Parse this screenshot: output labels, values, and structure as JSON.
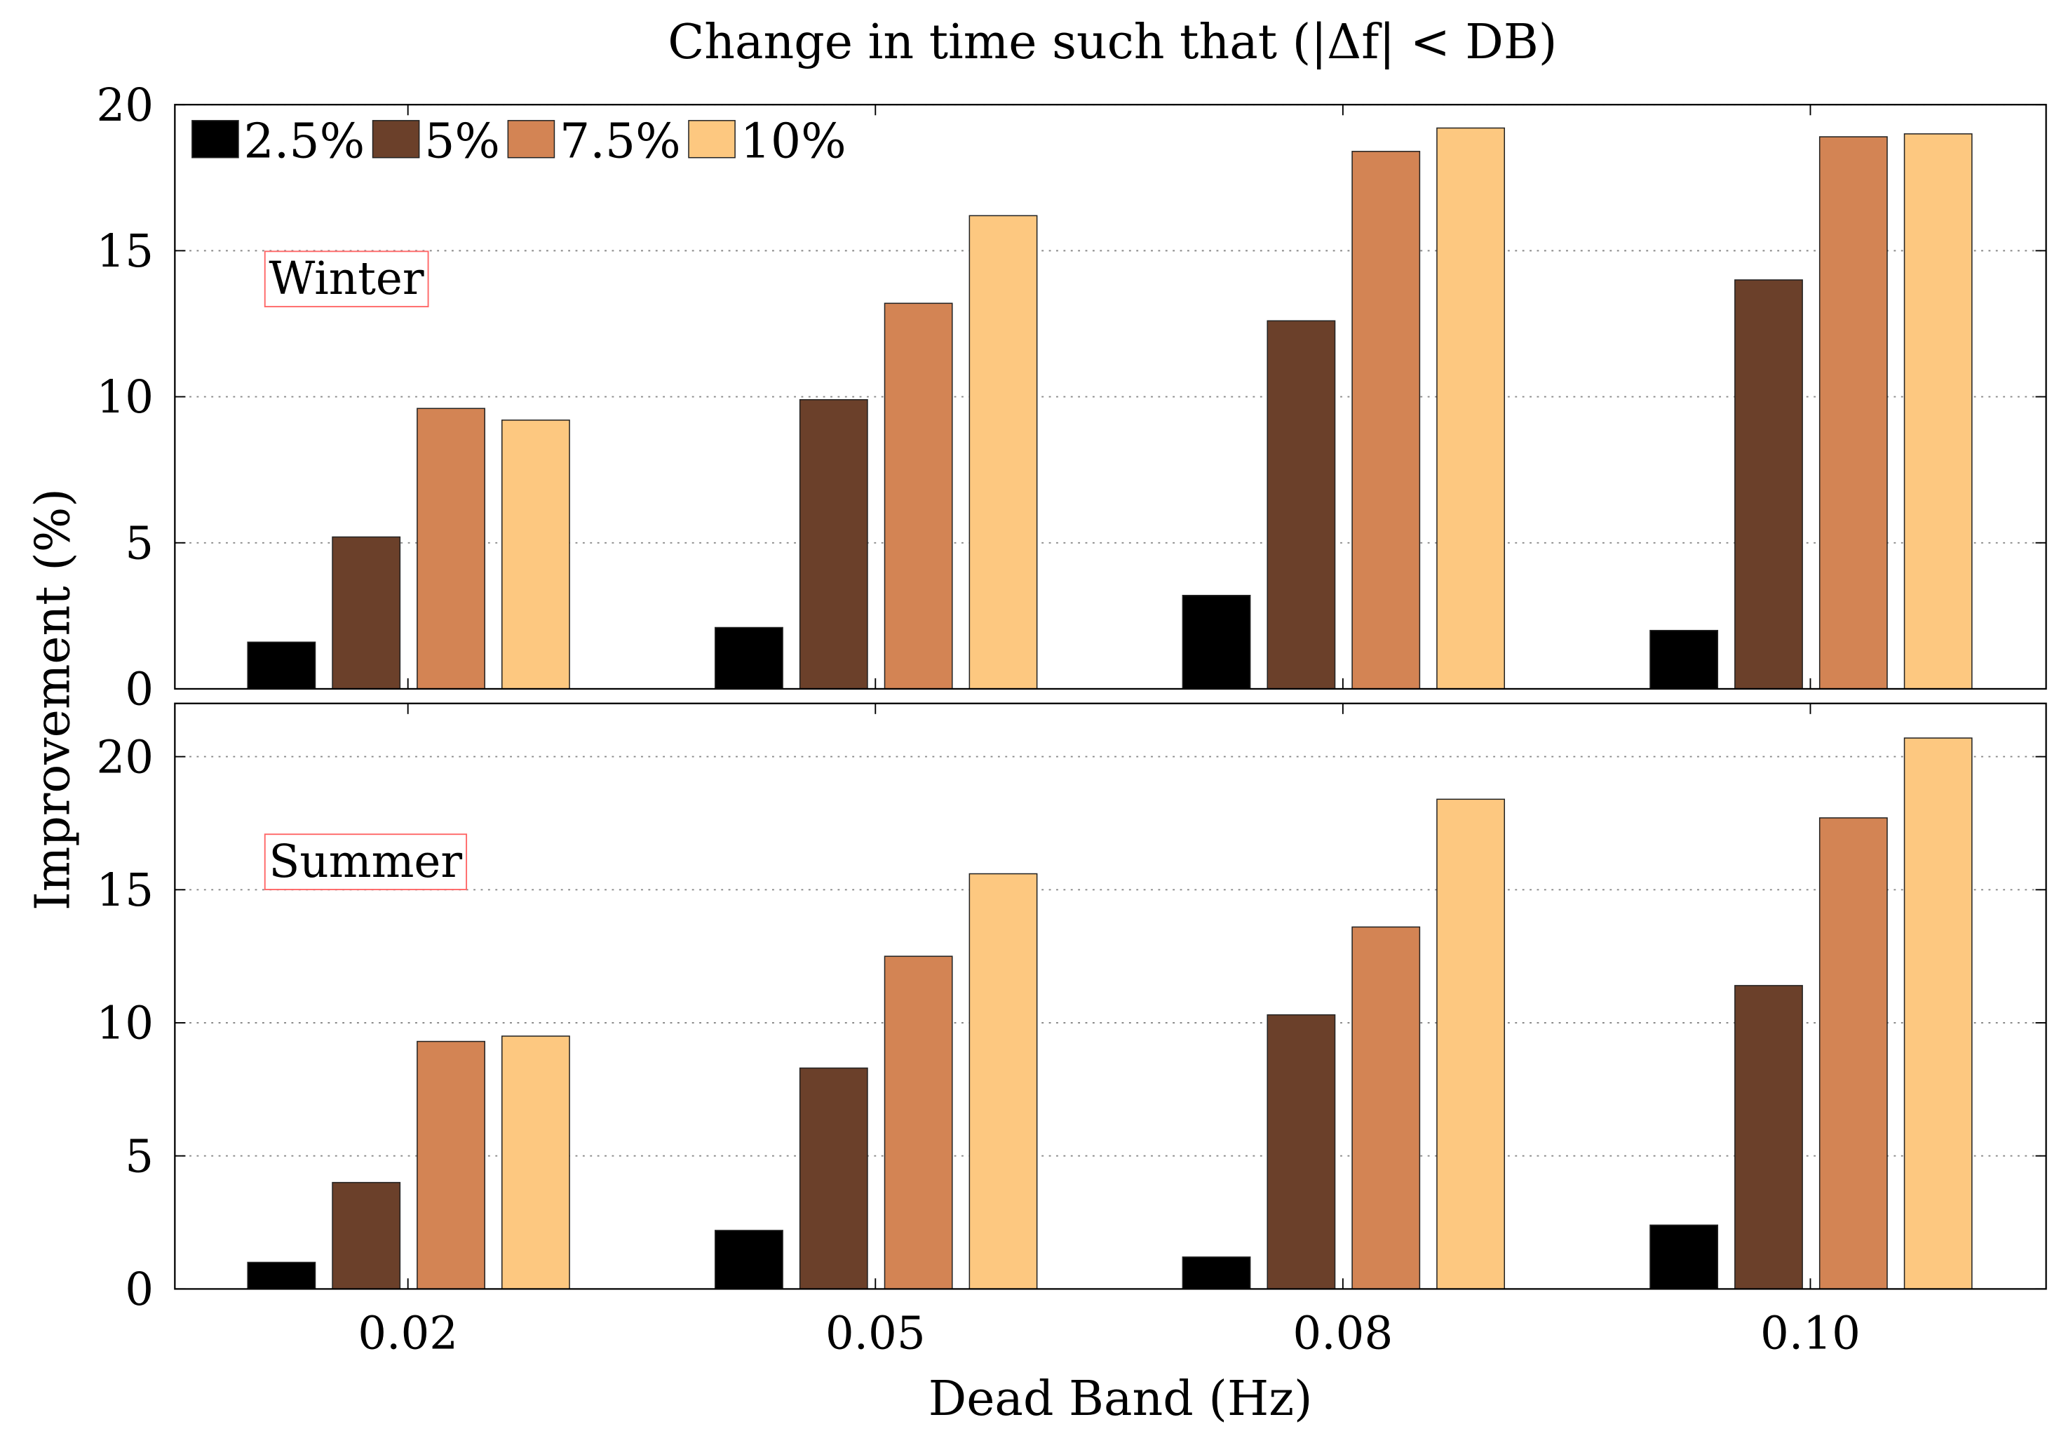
{
  "chart_data": [
    {
      "type": "bar",
      "title": "Change in time such that (|Δf| < DB)",
      "annotation": "Winter",
      "xlabel": "",
      "ylabel": "Improvement (%)",
      "categories": [
        "0.02",
        "0.05",
        "0.08",
        "0.10"
      ],
      "ylim": [
        0,
        20
      ],
      "yticks": [
        0,
        5,
        10,
        15,
        20
      ],
      "grid": "y-dotted",
      "legend": "top-left",
      "series": [
        {
          "name": "2.5%",
          "color": "#000000",
          "values": [
            1.6,
            2.1,
            3.2,
            2.0
          ]
        },
        {
          "name": "5%",
          "color": "#6b402a",
          "values": [
            5.2,
            9.9,
            12.6,
            14.0
          ]
        },
        {
          "name": "7.5%",
          "color": "#d38454",
          "values": [
            9.6,
            13.2,
            18.4,
            18.9
          ]
        },
        {
          "name": "10%",
          "color": "#fdc880",
          "values": [
            9.2,
            16.2,
            19.2,
            19.0
          ]
        }
      ]
    },
    {
      "type": "bar",
      "annotation": "Summer",
      "xlabel": "Dead Band (Hz)",
      "ylabel": "Improvement (%)",
      "categories": [
        "0.02",
        "0.05",
        "0.08",
        "0.10"
      ],
      "ylim": [
        0,
        22
      ],
      "yticks": [
        0,
        5,
        10,
        15,
        20
      ],
      "grid": "y-dotted",
      "series": [
        {
          "name": "2.5%",
          "color": "#000000",
          "values": [
            1.0,
            2.2,
            1.2,
            2.4
          ]
        },
        {
          "name": "5%",
          "color": "#6b402a",
          "values": [
            4.0,
            8.3,
            10.3,
            11.4
          ]
        },
        {
          "name": "7.5%",
          "color": "#d38454",
          "values": [
            9.3,
            12.5,
            13.6,
            17.7
          ]
        },
        {
          "name": "10%",
          "color": "#fdc880",
          "values": [
            9.5,
            15.6,
            18.4,
            20.7
          ]
        }
      ]
    }
  ],
  "shared_ylabel": "Improvement (%)"
}
